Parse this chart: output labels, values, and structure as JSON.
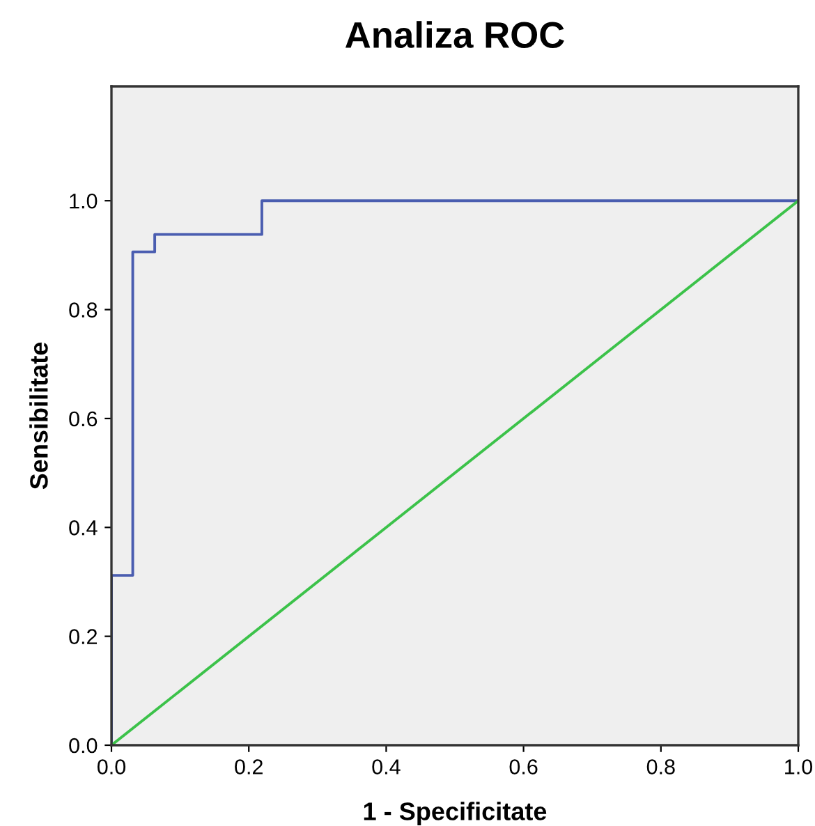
{
  "chart_data": {
    "type": "line",
    "title": "Analiza ROC",
    "xlabel": "1 - Specificitate",
    "ylabel": "Sensibilitate",
    "series": [
      {
        "type": "step",
        "color": "#4a5db0",
        "x": [
          0,
          0,
          0.031,
          0.063,
          0.219,
          1
        ],
        "values": [
          0,
          0.312,
          0.906,
          0.938,
          1,
          1
        ]
      },
      {
        "color": "#3cc24a",
        "x": [
          0,
          1
        ],
        "values": [
          0,
          1
        ]
      }
    ],
    "xlim": [
      0,
      1
    ],
    "ylim": [
      0,
      1.21
    ],
    "xticks": [
      {
        "value": 0,
        "label": "0.0"
      },
      0.2,
      0.4,
      0.6,
      0.8,
      {
        "value": 1,
        "label": "1.0"
      }
    ],
    "yticks": [
      {
        "value": 0,
        "label": "0.0"
      },
      0.2,
      0.4,
      0.6,
      0.8,
      {
        "value": 1,
        "label": "1.0"
      }
    ],
    "grid": false,
    "marker": "none"
  }
}
